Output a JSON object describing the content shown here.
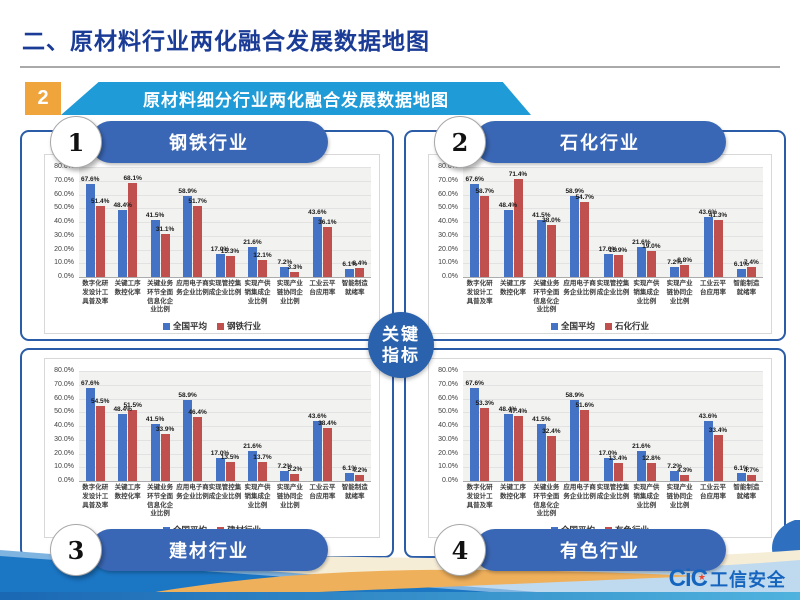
{
  "page": {
    "title": "二、原材料行业两化融合发展数据地图",
    "section": {
      "badge": "2",
      "banner": "原材料细分行业两化融合发展数据地图"
    },
    "center_badge": {
      "line1": "关键",
      "line2": "指标"
    },
    "footer": {
      "logo_cic": "CiC",
      "logo_star": "★",
      "logo_text": "工信安全"
    }
  },
  "quadrants": [
    {
      "num": "1",
      "title": "钢铁行业"
    },
    {
      "num": "2",
      "title": "石化行业"
    },
    {
      "num": "3",
      "title": "建材行业"
    },
    {
      "num": "4",
      "title": "有色行业"
    }
  ],
  "axis": {
    "y_ticks": [
      "80.0%",
      "70.0%",
      "60.0%",
      "50.0%",
      "40.0%",
      "30.0%",
      "20.0%",
      "10.0%",
      "0.0%"
    ]
  },
  "colors": {
    "national": "#4472C4",
    "industry": "#C0504D"
  },
  "chart_data": [
    {
      "type": "bar",
      "title": "钢铁行业",
      "categories": [
        "数字化研\n发设计工\n具普及率",
        "关键工序\n数控化率",
        "关键业务\n环节全面\n信息化企\n业比例",
        "应用电子商\n务企业比例",
        "实现管控集\n成企业比例",
        "实现产供\n销集成企\n业比例",
        "实现产业\n链协同企\n业比例",
        "工业云平\n台应用率",
        "智能制造\n就绪率"
      ],
      "series": [
        {
          "name": "全国平均",
          "values": [
            67.6,
            48.4,
            41.5,
            58.9,
            17.0,
            21.6,
            7.2,
            43.6,
            6.1
          ]
        },
        {
          "name": "钢铁行业",
          "values": [
            51.4,
            68.1,
            31.1,
            51.7,
            15.3,
            12.1,
            3.3,
            36.1,
            6.4
          ]
        }
      ],
      "ylim": [
        0,
        80
      ],
      "xlabel": "",
      "ylabel": "",
      "grid": true,
      "legend_position": "bottom"
    },
    {
      "type": "bar",
      "title": "石化行业",
      "categories": [
        "数字化研\n发设计工\n具普及率",
        "关键工序\n数控化率",
        "关键业务\n环节全面\n信息化企\n业比例",
        "应用电子商\n务企业比例",
        "实现管控集\n成企业比例",
        "实现产供\n销集成企\n业比例",
        "实现产业\n链协同企\n业比例",
        "工业云平\n台应用率",
        "智能制造\n就绪率"
      ],
      "series": [
        {
          "name": "全国平均",
          "values": [
            67.6,
            48.4,
            41.5,
            58.9,
            17.0,
            21.6,
            7.2,
            43.6,
            6.1
          ]
        },
        {
          "name": "石化行业",
          "values": [
            58.7,
            71.4,
            38.0,
            54.7,
            15.9,
            19.0,
            8.8,
            41.3,
            7.4
          ]
        }
      ],
      "ylim": [
        0,
        80
      ],
      "xlabel": "",
      "ylabel": "",
      "grid": true,
      "legend_position": "bottom"
    },
    {
      "type": "bar",
      "title": "建材行业",
      "categories": [
        "数字化研\n发设计工\n具普及率",
        "关键工序\n数控化率",
        "关键业务\n环节全面\n信息化企\n业比例",
        "应用电子商\n务企业比例",
        "实现管控集\n成企业比例",
        "实现产供\n销集成企\n业比例",
        "实现产业\n链协同企\n业比例",
        "工业云平\n台应用率",
        "智能制造\n就绪率"
      ],
      "series": [
        {
          "name": "全国平均",
          "values": [
            67.6,
            48.4,
            41.5,
            58.9,
            17.0,
            21.6,
            7.2,
            43.6,
            6.1
          ]
        },
        {
          "name": "建材行业",
          "values": [
            54.5,
            51.5,
            33.9,
            46.4,
            13.5,
            13.7,
            5.2,
            38.4,
            4.2
          ]
        }
      ],
      "ylim": [
        0,
        80
      ],
      "xlabel": "",
      "ylabel": "",
      "grid": true,
      "legend_position": "bottom"
    },
    {
      "type": "bar",
      "title": "有色行业",
      "categories": [
        "数字化研\n发设计工\n具普及率",
        "关键工序\n数控化率",
        "关键业务\n环节全面\n信息化企\n业比例",
        "应用电子商\n务企业比例",
        "实现管控集\n成企业比例",
        "实现产供\n销集成企\n业比例",
        "实现产业\n链协同企\n业比例",
        "工业云平\n台应用率",
        "智能制造\n就绪率"
      ],
      "series": [
        {
          "name": "全国平均",
          "values": [
            67.6,
            48.4,
            41.5,
            58.9,
            17.0,
            21.6,
            7.2,
            43.6,
            6.1
          ]
        },
        {
          "name": "有色行业",
          "values": [
            53.3,
            47.4,
            32.4,
            51.6,
            13.4,
            12.8,
            4.3,
            33.4,
            4.7
          ]
        }
      ],
      "ylim": [
        0,
        80
      ],
      "xlabel": "",
      "ylabel": "",
      "grid": true,
      "legend_position": "bottom"
    }
  ]
}
